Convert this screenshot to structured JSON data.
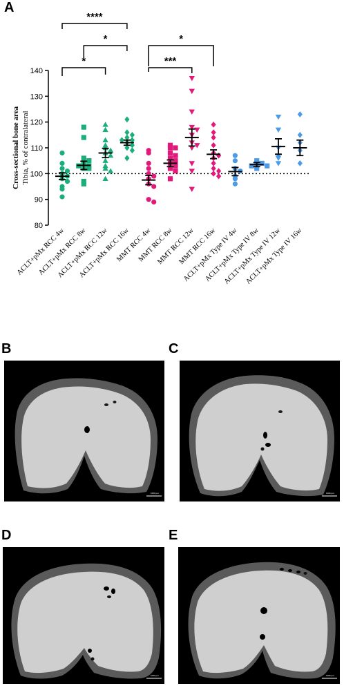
{
  "panel_labels": {
    "a": "A",
    "b": "B",
    "c": "C",
    "d": "D",
    "e": "E"
  },
  "colors": {
    "green": "#1cae7a",
    "magenta": "#e0197a",
    "blue": "#4d9be6",
    "black": "#000000"
  },
  "chart_data": {
    "type": "scatter",
    "ylabel_line1": "Cross-sectional bone area",
    "ylabel_line2": "Tibia, % of contralateral",
    "ylim": [
      80,
      140
    ],
    "yticks": [
      80,
      90,
      100,
      110,
      120,
      130,
      140
    ],
    "reference_line": 100,
    "categories": [
      "ACLT+pMx RCC 4w",
      "ACLT+pMx RCC 8w",
      "ACLT+pMx RCC 12w",
      "ACLT+pMx RCC 16w",
      "MMT RCC 4w",
      "MMT RCC 8w",
      "MMT RCC 12w",
      "MMT RCC 16w",
      "ACLT+pMx Type IV 4w",
      "ACLT+pMx Type IV 8w",
      "ACLT+pMx Type IV 12w",
      "ACLT+pMx Type IV 16w"
    ],
    "groups": [
      {
        "color": "green",
        "marker": "circle",
        "mean": 99.0,
        "sem": 1.3,
        "points": [
          108,
          104,
          102,
          101,
          100,
          99,
          98,
          97,
          95,
          94,
          91
        ]
      },
      {
        "color": "green",
        "marker": "square",
        "mean": 103.2,
        "sem": 1.6,
        "points": [
          118,
          114,
          106,
          105,
          104,
          103,
          103,
          102,
          102,
          97,
          96
        ]
      },
      {
        "color": "green",
        "marker": "triangle-up",
        "mean": 108.0,
        "sem": 1.8,
        "points": [
          119,
          117,
          113,
          111,
          110,
          109,
          108,
          107,
          105,
          103,
          102,
          101,
          98
        ]
      },
      {
        "color": "green",
        "marker": "diamond",
        "mean": 112.0,
        "sem": 1.0,
        "points": [
          121,
          116,
          115,
          114,
          113,
          113,
          112,
          111,
          110,
          109,
          106
        ]
      },
      {
        "color": "magenta",
        "marker": "circle",
        "mean": 97.5,
        "sem": 1.8,
        "points": [
          109,
          108,
          104,
          102,
          100,
          99,
          98,
          96,
          95,
          90,
          89
        ]
      },
      {
        "color": "magenta",
        "marker": "square",
        "mean": 104.0,
        "sem": 1.3,
        "points": [
          111,
          110,
          110,
          108,
          107,
          106,
          105,
          104,
          103,
          102,
          101,
          98
        ]
      },
      {
        "color": "magenta",
        "marker": "triangle-down",
        "mean": 114.0,
        "sem": 3.3,
        "points": [
          137,
          132,
          124,
          118,
          117,
          115,
          112,
          111,
          110,
          104,
          101,
          94
        ]
      },
      {
        "color": "magenta",
        "marker": "diamond",
        "mean": 107.5,
        "sem": 1.7,
        "points": [
          119,
          116,
          114,
          111,
          108,
          107,
          106,
          104,
          102,
          101,
          100,
          99
        ]
      },
      {
        "color": "blue",
        "marker": "circle",
        "mean": 100.8,
        "sem": 1.6,
        "points": [
          107,
          105,
          102,
          101,
          99,
          98,
          96
        ]
      },
      {
        "color": "blue",
        "marker": "square",
        "mean": 103.5,
        "sem": 0.8,
        "points": [
          105,
          104,
          104,
          103,
          103,
          102
        ]
      },
      {
        "color": "blue",
        "marker": "triangle-down",
        "mean": 110.5,
        "sem": 3.0,
        "points": [
          122,
          117,
          110,
          107,
          106,
          104
        ]
      },
      {
        "color": "blue",
        "marker": "diamond",
        "mean": 110.0,
        "sem": 3.0,
        "points": [
          123,
          115,
          112,
          109,
          104
        ]
      }
    ],
    "significance": [
      {
        "from": 0,
        "to": 3,
        "label": "****"
      },
      {
        "from": 1,
        "to": 3,
        "label": "*"
      },
      {
        "from": 0,
        "to": 2,
        "label": "*"
      },
      {
        "from": 4,
        "to": 7,
        "label": "*"
      },
      {
        "from": 4,
        "to": 6,
        "label": "***"
      }
    ]
  },
  "micrographs": [
    {
      "label_key": "b",
      "scale_label": "1000 µm"
    },
    {
      "label_key": "c",
      "scale_label": "1000 µm"
    },
    {
      "label_key": "d",
      "scale_label": "1000 µm"
    },
    {
      "label_key": "e",
      "scale_label": "1000 µm"
    }
  ]
}
